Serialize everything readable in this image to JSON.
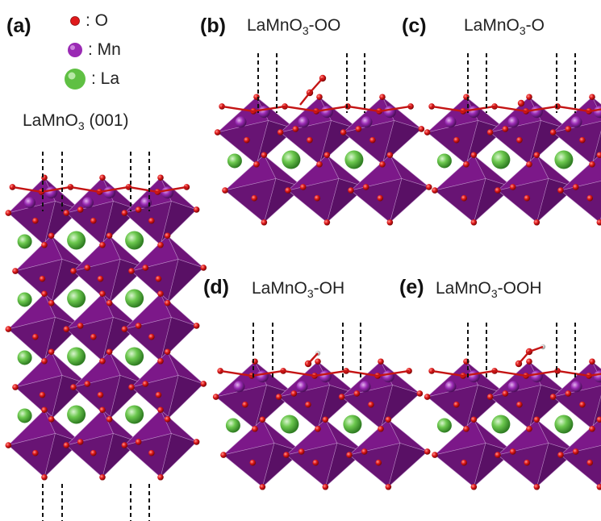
{
  "legend": [
    {
      "symbol": "O",
      "label": ": O",
      "color": "#e0191b"
    },
    {
      "symbol": "Mn",
      "label": ": Mn",
      "color": "#9a2ab4"
    },
    {
      "symbol": "La",
      "label": ": La",
      "color": "#5fc043"
    }
  ],
  "panels": [
    {
      "letter": "(a)",
      "name_main": "LaMnO",
      "name_sub": "3",
      "name_tail": " (001)"
    },
    {
      "letter": "(b)",
      "name_main": "LaMnO",
      "name_sub": "3",
      "name_tail": "-OO"
    },
    {
      "letter": "(c)",
      "name_main": "LaMnO",
      "name_sub": "3",
      "name_tail": "-O"
    },
    {
      "letter": "(d)",
      "name_main": "LaMnO",
      "name_sub": "3",
      "name_tail": "-OH"
    },
    {
      "letter": "(e)",
      "name_main": "LaMnO",
      "name_sub": "3",
      "name_tail": "-OOH"
    }
  ],
  "colors": {
    "octahedron": "#8f1f9c",
    "octahedron_dark": "#6a1277",
    "oxygen": "#e0191b",
    "manganese": "#9a2ab4",
    "lanthanum": "#5fc043",
    "hydrogen": "#f0f0f0"
  }
}
